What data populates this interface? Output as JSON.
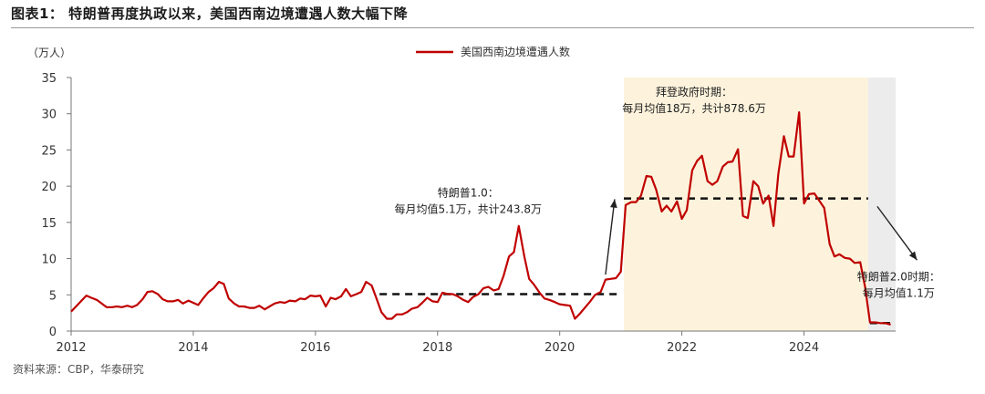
{
  "figure_title": "图表1： 特朗普再度执政以来，美国西南边境遭遇人数大幅下降",
  "source_note": "资料来源：CBP，华泰研究",
  "chart_data": {
    "type": "line",
    "title": "",
    "xlabel": "",
    "ylabel": "（万人）",
    "x_ticks": [
      2012,
      2014,
      2016,
      2018,
      2020,
      2022,
      2024
    ],
    "y_ticks": [
      0,
      5,
      10,
      15,
      20,
      25,
      30,
      35
    ],
    "xlim": [
      2012.0,
      2025.5
    ],
    "ylim": [
      0,
      35
    ],
    "grid": false,
    "legend": "top-center",
    "line_color": "#c00000",
    "series": [
      {
        "name": "美国西南边境遭遇人数",
        "x": [
          2012.0,
          2012.08,
          2012.17,
          2012.25,
          2012.33,
          2012.42,
          2012.5,
          2012.58,
          2012.67,
          2012.75,
          2012.83,
          2012.92,
          2013.0,
          2013.08,
          2013.17,
          2013.25,
          2013.33,
          2013.42,
          2013.5,
          2013.58,
          2013.67,
          2013.75,
          2013.83,
          2013.92,
          2014.0,
          2014.08,
          2014.17,
          2014.25,
          2014.33,
          2014.42,
          2014.5,
          2014.58,
          2014.67,
          2014.75,
          2014.83,
          2014.92,
          2015.0,
          2015.08,
          2015.17,
          2015.25,
          2015.33,
          2015.42,
          2015.5,
          2015.58,
          2015.67,
          2015.75,
          2015.83,
          2015.92,
          2016.0,
          2016.08,
          2016.17,
          2016.25,
          2016.33,
          2016.42,
          2016.5,
          2016.58,
          2016.67,
          2016.75,
          2016.83,
          2016.92,
          2017.0,
          2017.08,
          2017.17,
          2017.25,
          2017.33,
          2017.42,
          2017.5,
          2017.58,
          2017.67,
          2017.75,
          2017.83,
          2017.92,
          2018.0,
          2018.08,
          2018.17,
          2018.25,
          2018.33,
          2018.42,
          2018.5,
          2018.58,
          2018.67,
          2018.75,
          2018.83,
          2018.92,
          2019.0,
          2019.08,
          2019.17,
          2019.25,
          2019.33,
          2019.42,
          2019.5,
          2019.58,
          2019.67,
          2019.75,
          2019.83,
          2019.92,
          2020.0,
          2020.08,
          2020.17,
          2020.25,
          2020.33,
          2020.42,
          2020.5,
          2020.58,
          2020.67,
          2020.75,
          2020.83,
          2020.92,
          2021.0,
          2021.08,
          2021.17,
          2021.25,
          2021.33,
          2021.42,
          2021.5,
          2021.58,
          2021.67,
          2021.75,
          2021.83,
          2021.92,
          2022.0,
          2022.08,
          2022.17,
          2022.25,
          2022.33,
          2022.42,
          2022.5,
          2022.58,
          2022.67,
          2022.75,
          2022.83,
          2022.92,
          2023.0,
          2023.08,
          2023.17,
          2023.25,
          2023.33,
          2023.42,
          2023.5,
          2023.58,
          2023.67,
          2023.75,
          2023.83,
          2023.92,
          2024.0,
          2024.08,
          2024.17,
          2024.25,
          2024.33,
          2024.42,
          2024.5,
          2024.58,
          2024.67,
          2024.75,
          2024.83,
          2024.92,
          2025.0,
          2025.08,
          2025.17,
          2025.25,
          2025.33,
          2025.42
        ],
        "values": [
          2.7,
          3.4,
          4.2,
          4.9,
          4.6,
          4.3,
          3.8,
          3.3,
          3.3,
          3.4,
          3.3,
          3.5,
          3.3,
          3.6,
          4.4,
          5.4,
          5.5,
          5.1,
          4.4,
          4.1,
          4.1,
          4.3,
          3.8,
          4.2,
          3.9,
          3.6,
          4.6,
          5.4,
          5.9,
          6.8,
          6.5,
          4.5,
          3.8,
          3.4,
          3.4,
          3.2,
          3.2,
          3.5,
          3.0,
          3.4,
          3.8,
          4.0,
          3.9,
          4.2,
          4.1,
          4.5,
          4.4,
          4.9,
          4.8,
          4.9,
          3.4,
          4.6,
          4.4,
          4.8,
          5.8,
          4.8,
          5.1,
          5.4,
          6.8,
          6.3,
          4.5,
          2.6,
          1.7,
          1.7,
          2.3,
          2.3,
          2.6,
          3.1,
          3.3,
          3.9,
          4.6,
          4.1,
          4.0,
          5.3,
          5.1,
          5.1,
          4.8,
          4.3,
          4.0,
          4.7,
          5.1,
          5.9,
          6.1,
          5.6,
          5.8,
          7.6,
          10.3,
          10.9,
          14.5,
          10.3,
          7.2,
          6.4,
          5.3,
          4.5,
          4.3,
          4.0,
          3.7,
          3.6,
          3.5,
          1.7,
          2.4,
          3.3,
          4.1,
          5.0,
          5.4,
          7.1,
          7.2,
          7.3,
          8.2,
          17.4,
          17.8,
          17.8,
          18.7,
          21.4,
          21.3,
          19.5,
          16.5,
          17.3,
          16.5,
          17.9,
          15.5,
          16.7,
          22.2,
          23.5,
          24.2,
          20.7,
          20.2,
          20.7,
          22.7,
          23.3,
          23.4,
          25.1,
          15.9,
          15.6,
          20.7,
          20.0,
          17.6,
          18.7,
          14.5,
          21.7,
          26.9,
          24.1,
          24.1,
          30.2,
          17.6,
          18.9,
          19.0,
          18.0,
          17.0,
          12.0,
          10.3,
          10.6,
          10.1,
          10.0,
          9.4,
          9.5,
          6.1,
          1.2,
          1.2,
          1.1,
          1.1,
          0.9
        ]
      }
    ],
    "shaded_periods": [
      {
        "from": 2021.05,
        "to": 2025.05,
        "color": "#fdf3dc"
      },
      {
        "from": 2025.05,
        "to": 2025.5,
        "color": "#ececec"
      }
    ],
    "reference_lines": [
      {
        "from": 2017.05,
        "to": 2021.0,
        "value": 5.1
      },
      {
        "from": 2021.05,
        "to": 2025.05,
        "value": 18.3
      },
      {
        "from": 2025.08,
        "to": 2025.45,
        "value": 1.1
      }
    ],
    "annotations": [
      {
        "lines": [
          "特朗普1.0：",
          "每月均值5.1万，共计243.8万"
        ],
        "x": 2018.5,
        "y": 18.6,
        "anchor": "middle"
      },
      {
        "lines": [
          "拜登政府时期：",
          "每月均值18万，共计878.6万"
        ],
        "x": 2022.2,
        "y": 32.5,
        "anchor": "middle"
      },
      {
        "lines": [
          "特朗普2.0时期：",
          "每月均值1.1万"
        ],
        "x": 2025.55,
        "y": 7.0,
        "anchor": "middle"
      }
    ],
    "arrows": [
      {
        "from": [
          2020.75,
          7.8
        ],
        "to": [
          2020.9,
          18.2
        ]
      },
      {
        "from": [
          2025.2,
          17.2
        ],
        "to": [
          2025.85,
          9.8
        ]
      }
    ]
  }
}
